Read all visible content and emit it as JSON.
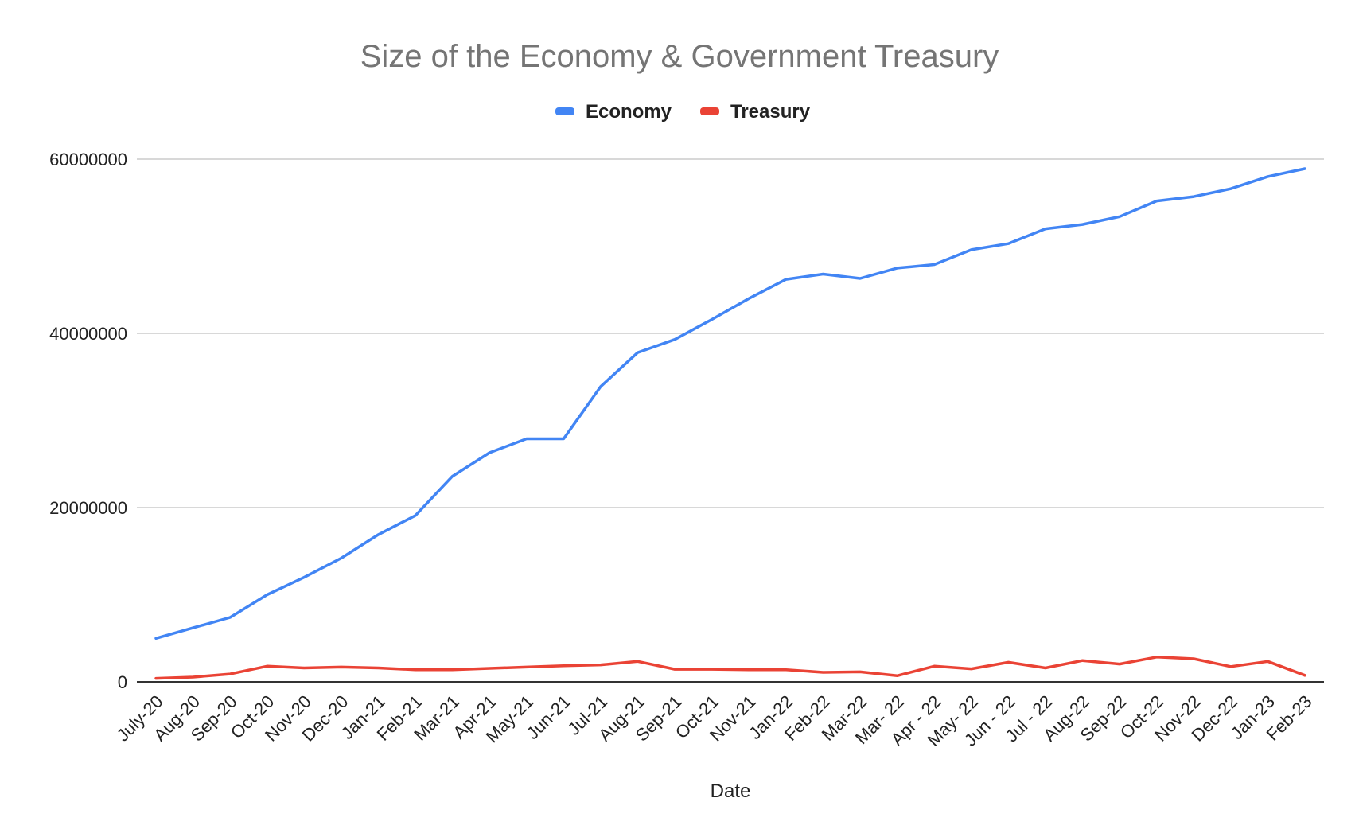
{
  "chart_data": {
    "type": "line",
    "title": "Size of the Economy & Government Treasury",
    "xlabel": "Date",
    "ylabel": "",
    "ylim": [
      0,
      60000000
    ],
    "yticks": [
      "0",
      "20000000",
      "40000000",
      "60000000"
    ],
    "ytick_values": [
      0,
      20000000,
      40000000,
      60000000
    ],
    "grid": true,
    "legend_position": "top",
    "categories": [
      "July-20",
      "Aug-20",
      "Sep-20",
      "Oct-20",
      "Nov-20",
      "Dec-20",
      "Jan-21",
      "Feb-21",
      "Mar-21",
      "Apr-21",
      "May-21",
      "Jun-21",
      "Jul-21",
      "Aug-21",
      "Sep-21",
      "Oct-21",
      "Nov-21",
      "Jan-22",
      "Feb-22",
      "Mar-22",
      "Mar- 22",
      "Apr - 22",
      "May- 22",
      "Jun - 22",
      "Jul - 22",
      "Aug-22",
      "Sep-22",
      "Oct-22",
      "Nov-22",
      "Dec-22",
      "Jan-23",
      "Feb-23"
    ],
    "series": [
      {
        "name": "Economy",
        "color": "#4285f4",
        "values": [
          5000000,
          6200000,
          7400000,
          10000000,
          12000000,
          14200000,
          16900000,
          19100000,
          23600000,
          26300000,
          27900000,
          27900000,
          33900000,
          37800000,
          39300000,
          41600000,
          44000000,
          46200000,
          46800000,
          46300000,
          47500000,
          47900000,
          49600000,
          50300000,
          52000000,
          52500000,
          53400000,
          55200000,
          55700000,
          56600000,
          58000000,
          58900000
        ]
      },
      {
        "name": "Treasury",
        "color": "#ea4335",
        "values": [
          400000,
          550000,
          900000,
          1800000,
          1600000,
          1700000,
          1600000,
          1400000,
          1400000,
          1550000,
          1700000,
          1850000,
          1950000,
          2350000,
          1450000,
          1450000,
          1400000,
          1400000,
          1100000,
          1150000,
          700000,
          1800000,
          1500000,
          2250000,
          1600000,
          2450000,
          2050000,
          2850000,
          2650000,
          1750000,
          2350000,
          750000
        ]
      }
    ]
  }
}
